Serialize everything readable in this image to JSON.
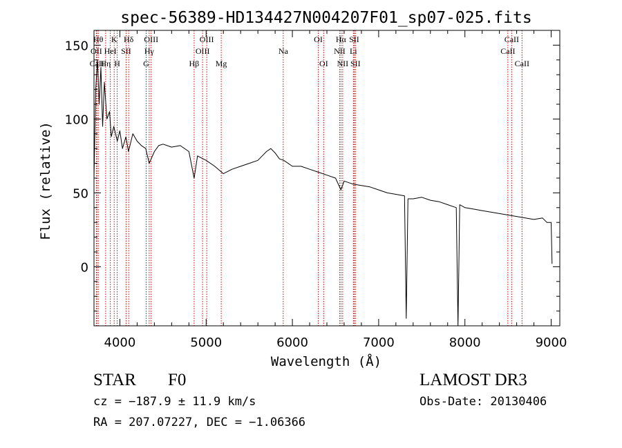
{
  "chart_data": {
    "type": "line",
    "title": "spec-56389-HD134427N004207F01_sp07-025.fits",
    "xlabel": "Wavelength (Å)",
    "ylabel": "Flux (relative)",
    "xlim": [
      3700,
      9100
    ],
    "ylim": [
      -40,
      160
    ],
    "xticks": [
      4000,
      5000,
      6000,
      7000,
      8000,
      9000
    ],
    "xtick_labels": [
      "4000",
      "5000",
      "6000",
      "7000",
      "8000",
      "9000"
    ],
    "yticks": [
      0,
      50,
      100,
      150
    ],
    "ytick_labels": [
      "0",
      "50",
      "100",
      "150"
    ],
    "grid": false,
    "series": [
      {
        "name": "flux",
        "x": [
          3700,
          3720,
          3740,
          3760,
          3780,
          3800,
          3820,
          3850,
          3880,
          3900,
          3930,
          3970,
          4000,
          4030,
          4070,
          4100,
          4150,
          4200,
          4250,
          4300,
          4340,
          4400,
          4450,
          4500,
          4600,
          4700,
          4800,
          4861,
          4900,
          5000,
          5100,
          5200,
          5300,
          5400,
          5500,
          5600,
          5700,
          5750,
          5800,
          5850,
          5900,
          6000,
          6100,
          6200,
          6300,
          6400,
          6500,
          6563,
          6600,
          6700,
          6800,
          6900,
          7000,
          7100,
          7200,
          7300,
          7320,
          7340,
          7400,
          7500,
          7600,
          7700,
          7800,
          7900,
          7920,
          7940,
          8000,
          8100,
          8200,
          8300,
          8400,
          8500,
          8600,
          8700,
          8800,
          8900,
          8950,
          9000,
          9010
        ],
        "y": [
          60,
          120,
          140,
          110,
          135,
          95,
          125,
          100,
          105,
          88,
          95,
          85,
          92,
          80,
          88,
          78,
          90,
          85,
          82,
          80,
          70,
          78,
          82,
          83,
          81,
          82,
          78,
          60,
          75,
          72,
          68,
          63,
          66,
          68,
          70,
          72,
          78,
          80,
          77,
          73,
          72,
          68,
          68,
          66,
          64,
          62,
          60,
          52,
          58,
          56,
          55,
          54,
          52,
          50,
          49,
          48,
          -35,
          46,
          46,
          47,
          45,
          44,
          42,
          40,
          -40,
          42,
          40,
          39,
          38,
          37,
          36,
          35,
          34,
          33,
          32,
          33,
          30,
          30,
          2
        ]
      }
    ],
    "lines": [
      {
        "name": "CaII",
        "wavelength": 3734,
        "row": 2
      },
      {
        "name": "OII",
        "wavelength": 3727,
        "row": 1
      },
      {
        "name": "Hθ",
        "wavelength": 3750,
        "row": 0
      },
      {
        "name": "Hη",
        "wavelength": 3835,
        "row": 2
      },
      {
        "name": "HeI",
        "wavelength": 3889,
        "row": 1
      },
      {
        "name": "K",
        "wavelength": 3934,
        "row": 0
      },
      {
        "name": "H",
        "wavelength": 3969,
        "row": 2
      },
      {
        "name": "SII",
        "wavelength": 4072,
        "row": 1
      },
      {
        "name": "Hδ",
        "wavelength": 4102,
        "row": 0
      },
      {
        "name": "G",
        "wavelength": 4305,
        "row": 2
      },
      {
        "name": "Hγ",
        "wavelength": 4340,
        "row": 1
      },
      {
        "name": "OIII",
        "wavelength": 4363,
        "row": 0
      },
      {
        "name": "Hβ",
        "wavelength": 4861,
        "row": 2
      },
      {
        "name": "OIII",
        "wavelength": 4959,
        "row": 1
      },
      {
        "name": "OIII",
        "wavelength": 5007,
        "row": 0
      },
      {
        "name": "Mg",
        "wavelength": 5175,
        "row": 2
      },
      {
        "name": "Na",
        "wavelength": 5894,
        "row": 1
      },
      {
        "name": "OI",
        "wavelength": 6300,
        "row": 0
      },
      {
        "name": "OI",
        "wavelength": 6363,
        "row": 2
      },
      {
        "name": "NII",
        "wavelength": 6548,
        "row": 1
      },
      {
        "name": "Hα",
        "wavelength": 6563,
        "row": 0
      },
      {
        "name": "NII",
        "wavelength": 6583,
        "row": 2
      },
      {
        "name": "Li",
        "wavelength": 6707,
        "row": 1
      },
      {
        "name": "SII",
        "wavelength": 6716,
        "row": 0
      },
      {
        "name": "SII",
        "wavelength": 6731,
        "row": 2
      },
      {
        "name": "CaII",
        "wavelength": 8498,
        "row": 1
      },
      {
        "name": "CaII",
        "wavelength": 8542,
        "row": 0
      },
      {
        "name": "CaII",
        "wavelength": 8662,
        "row": 2
      }
    ]
  },
  "info": {
    "class": "STAR",
    "subclass": "F0",
    "survey": "LAMOST DR3",
    "cz": "cz = −187.9 ± 11.9 km/s",
    "obs_date": "Obs-Date: 20130406",
    "radec": "RA = 207.07227, DEC =  −1.06366"
  },
  "colors": {
    "line_marker": "#cc0000",
    "spectrum": "#000000"
  }
}
